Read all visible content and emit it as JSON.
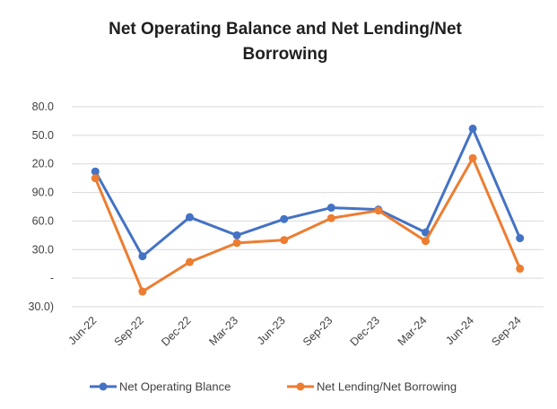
{
  "chart_data": {
    "type": "line",
    "title": "Net Operating Balance and Net Lending/Net Borrowing",
    "title_lines": [
      "Net Operating Balance and Net Lending/Net",
      "Borrowing"
    ],
    "categories": [
      "Jun-22",
      "Sep-22",
      "Dec-22",
      "Mar-23",
      "Jun-23",
      "Sep-23",
      "Dec-23",
      "Mar-24",
      "Jun-24",
      "Sep-24"
    ],
    "y_tick_labels": [
      "80.0",
      "50.0",
      "20.0",
      "90.0",
      "60.0",
      "30.0",
      "-",
      "30.0)"
    ],
    "ylim": [
      -30,
      180
    ],
    "grid": true,
    "legend_position": "bottom",
    "series": [
      {
        "name": "Net Operating Blance",
        "color": "#4472C4",
        "values": [
          112,
          23,
          64,
          45,
          62,
          74,
          72,
          48,
          157,
          42
        ]
      },
      {
        "name": "Net Lending/Net Borrowing",
        "color": "#ED7D31",
        "values": [
          105,
          -14,
          17,
          37,
          40,
          63,
          71,
          39,
          126,
          10
        ]
      }
    ]
  }
}
